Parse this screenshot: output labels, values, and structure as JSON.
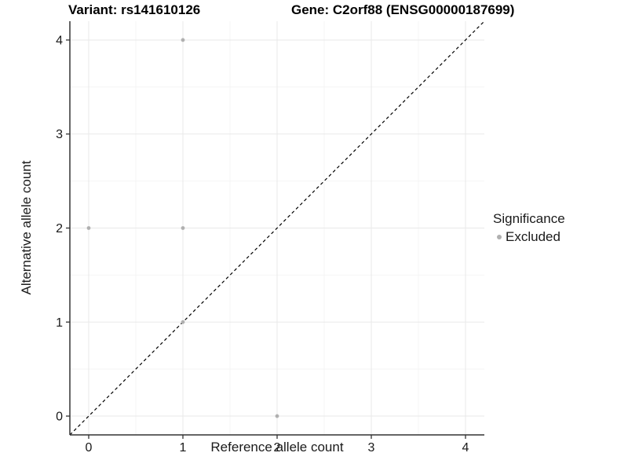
{
  "chart_data": {
    "type": "scatter",
    "title_left": "Variant: rs141610126",
    "title_right": "Gene: C2orf88 (ENSG00000187699)",
    "xlabel": "Reference allele count",
    "ylabel": "Alternative allele count",
    "x_ticks": [
      0,
      1,
      2,
      3,
      4
    ],
    "y_ticks": [
      0,
      1,
      2,
      3,
      4
    ],
    "xlim": [
      -0.2,
      4.2
    ],
    "ylim": [
      -0.2,
      4.2
    ],
    "grid": {
      "major": true,
      "minor": true,
      "minor_step": 0.5
    },
    "reference_line": {
      "kind": "identity",
      "equation": "y = x",
      "style": "dashed",
      "color": "#000000"
    },
    "series": [
      {
        "name": "Excluded",
        "color": "#b0b0b0",
        "points": [
          {
            "x": 0,
            "y": 2
          },
          {
            "x": 1,
            "y": 1
          },
          {
            "x": 1,
            "y": 2
          },
          {
            "x": 1,
            "y": 4
          },
          {
            "x": 2,
            "y": 0
          }
        ]
      }
    ],
    "legend": {
      "title": "Significance",
      "position": "right",
      "items": [
        "Excluded"
      ]
    },
    "style": {
      "grid_major_color": "#e9e9e9",
      "grid_minor_color": "#f4f4f4",
      "axis_color": "#333333",
      "point_color": "#b0b0b0",
      "background": "#ffffff"
    }
  }
}
